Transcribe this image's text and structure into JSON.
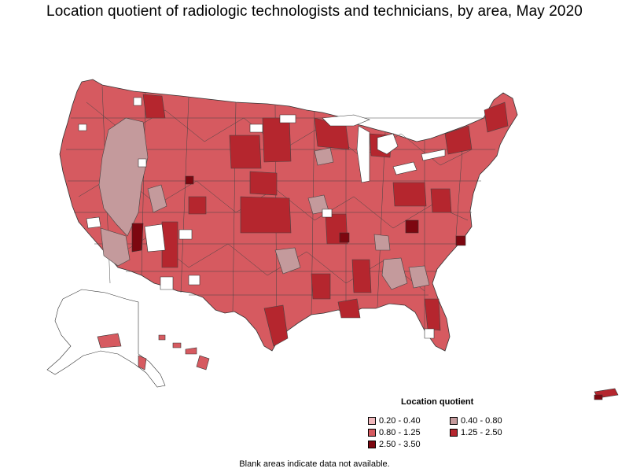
{
  "title": "Location quotient of radiologic technologists and technicians, by area, May 2020",
  "legend": {
    "title": "Location quotient",
    "items": [
      {
        "label": "0.20 - 0.40",
        "color": "#f0b8bc"
      },
      {
        "label": "0.40 - 0.80",
        "color": "#c49a9c"
      },
      {
        "label": "0.80 - 1.25",
        "color": "#d65a60"
      },
      {
        "label": "1.25 - 2.50",
        "color": "#b5262e"
      },
      {
        "label": "2.50 - 3.50",
        "color": "#7d0710"
      }
    ]
  },
  "footnote": "Blank areas indicate data not available.",
  "colors": {
    "border": "#333333",
    "blank": "#ffffff",
    "q1": "#f0b8bc",
    "q2": "#c49a9c",
    "q3": "#d65a60",
    "q4": "#b5262e",
    "q5": "#7d0710"
  }
}
